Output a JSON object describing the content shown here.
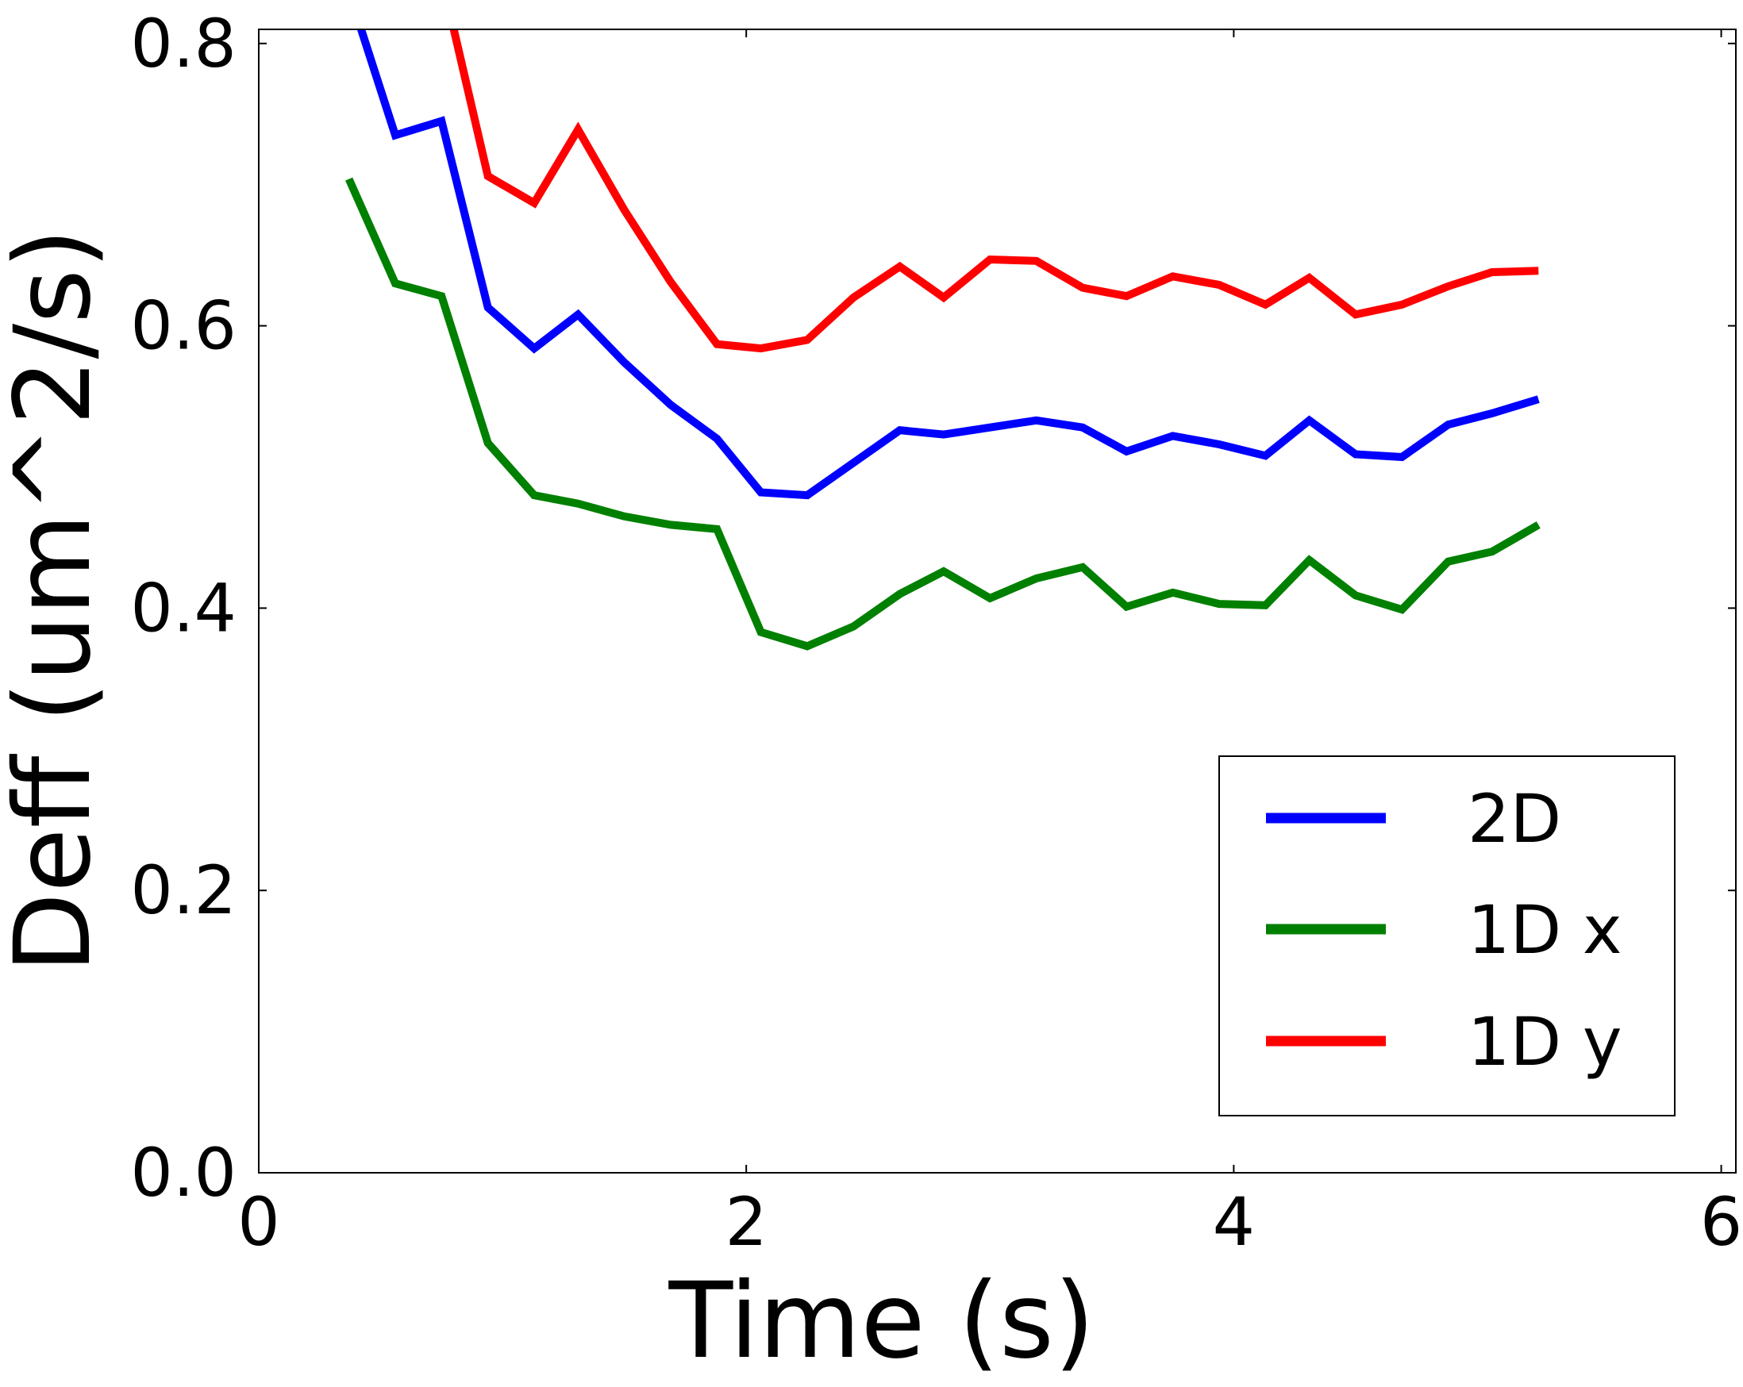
{
  "chart_data": {
    "type": "line",
    "title": "",
    "xlabel": "Time (s)",
    "ylabel": "Deff (um^2/s)",
    "xlim": [
      0,
      6.06
    ],
    "ylim": [
      0,
      0.81
    ],
    "xticks": [
      0,
      2,
      4,
      6
    ],
    "xtick_labels": [
      "0",
      "2",
      "4",
      "6"
    ],
    "yticks": [
      0.0,
      0.2,
      0.4,
      0.6,
      0.8
    ],
    "ytick_labels": [
      "0.0",
      "0.2",
      "0.4",
      "0.6",
      "0.8"
    ],
    "grid": false,
    "legend_position": "lower-right",
    "series": [
      {
        "name": "2D",
        "color": "#0000ff",
        "x": [
          0.35,
          0.42,
          0.56,
          0.75,
          0.94,
          1.13,
          1.31,
          1.5,
          1.69,
          1.88,
          2.06,
          2.25,
          2.44,
          2.63,
          2.81,
          3.0,
          3.19,
          3.38,
          3.56,
          3.75,
          3.94,
          4.13,
          4.31,
          4.5,
          4.69,
          4.88,
          5.06,
          5.25
        ],
        "y": [
          0.86,
          0.81,
          0.735,
          0.745,
          0.613,
          0.584,
          0.608,
          0.574,
          0.544,
          0.52,
          0.482,
          0.48,
          0.503,
          0.526,
          0.523,
          0.528,
          0.533,
          0.528,
          0.511,
          0.522,
          0.516,
          0.508,
          0.533,
          0.509,
          0.507,
          0.53,
          0.538,
          0.548
        ]
      },
      {
        "name": "1D x",
        "color": "#008000",
        "x": [
          0.37,
          0.56,
          0.75,
          0.94,
          1.13,
          1.31,
          1.5,
          1.69,
          1.88,
          2.06,
          2.25,
          2.44,
          2.63,
          2.81,
          3.0,
          3.19,
          3.38,
          3.56,
          3.75,
          3.94,
          4.13,
          4.31,
          4.5,
          4.69,
          4.88,
          5.06,
          5.25
        ],
        "y": [
          0.704,
          0.63,
          0.621,
          0.517,
          0.48,
          0.474,
          0.465,
          0.459,
          0.456,
          0.383,
          0.373,
          0.387,
          0.41,
          0.426,
          0.407,
          0.421,
          0.429,
          0.401,
          0.411,
          0.403,
          0.402,
          0.434,
          0.409,
          0.399,
          0.433,
          0.44,
          0.459
        ]
      },
      {
        "name": "1D y",
        "color": "#ff0000",
        "x": [
          0.72,
          0.8,
          0.94,
          1.13,
          1.31,
          1.5,
          1.69,
          1.88,
          2.06,
          2.25,
          2.44,
          2.63,
          2.81,
          3.0,
          3.19,
          3.38,
          3.56,
          3.75,
          3.94,
          4.13,
          4.31,
          4.5,
          4.69,
          4.88,
          5.06,
          5.25
        ],
        "y": [
          0.86,
          0.81,
          0.706,
          0.687,
          0.739,
          0.682,
          0.631,
          0.587,
          0.584,
          0.59,
          0.62,
          0.642,
          0.62,
          0.647,
          0.646,
          0.627,
          0.621,
          0.635,
          0.629,
          0.615,
          0.634,
          0.608,
          0.615,
          0.628,
          0.638,
          0.639
        ]
      }
    ]
  }
}
